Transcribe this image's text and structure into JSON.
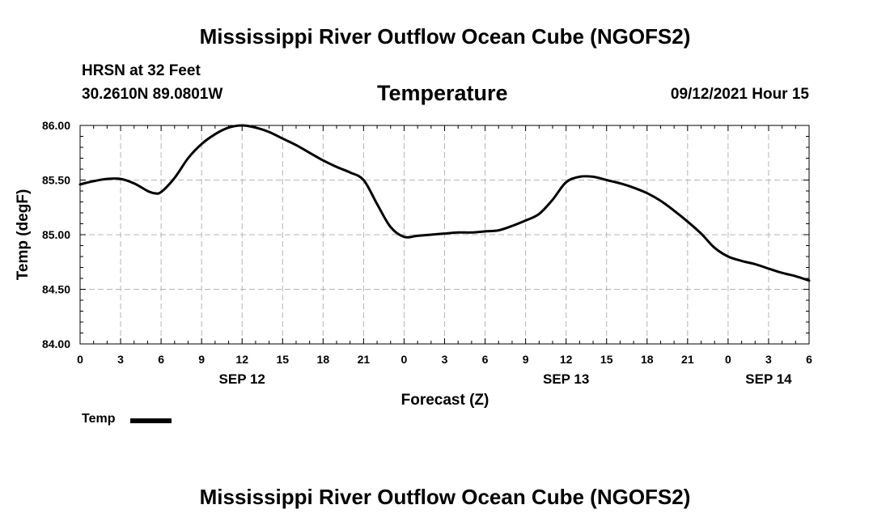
{
  "header": {
    "title": "Mississippi River Outflow Ocean Cube (NGOFS2)",
    "station": "HRSN at 32 Feet",
    "coords": "30.2610N  89.0801W",
    "datetime": "09/12/2021 Hour 15",
    "footer_title": "Mississippi River Outflow Ocean Cube (NGOFS2)"
  },
  "legend": {
    "label": "Temp"
  },
  "colors": {
    "line": "#000000",
    "grid": "#b4b4b4",
    "background": "#ffffff"
  },
  "chart_data": {
    "type": "line",
    "title": "Temperature",
    "xlabel": "Forecast (Z)",
    "ylabel": "Temp (degF)",
    "xlim": [
      0,
      54
    ],
    "ylim": [
      84.0,
      86.0
    ],
    "grid": true,
    "legend_position": "bottom-left",
    "x_ticks": [
      0,
      3,
      6,
      9,
      12,
      15,
      18,
      21,
      24,
      27,
      30,
      33,
      36,
      39,
      42,
      45,
      48,
      51,
      54
    ],
    "x_tick_labels": [
      "0",
      "3",
      "6",
      "9",
      "12",
      "15",
      "18",
      "21",
      "0",
      "3",
      "6",
      "9",
      "12",
      "15",
      "18",
      "21",
      "0",
      "3",
      "6"
    ],
    "y_ticks": [
      84.0,
      84.5,
      85.0,
      85.5,
      86.0
    ],
    "y_tick_labels": [
      "84.00",
      "84.50",
      "85.00",
      "85.50",
      "86.00"
    ],
    "date_labels": [
      {
        "x": 12,
        "label": "SEP 12"
      },
      {
        "x": 36,
        "label": "SEP 13"
      },
      {
        "x": 51,
        "label": "SEP 14"
      }
    ],
    "series": [
      {
        "name": "Temp",
        "x": [
          0,
          1,
          2,
          3,
          4,
          5,
          5.5,
          6,
          7,
          8,
          9,
          10,
          11,
          12,
          13,
          14,
          15,
          16,
          17,
          18,
          19,
          20,
          21,
          22,
          23,
          24,
          25,
          26,
          27,
          28,
          29,
          30,
          31,
          32,
          33,
          34,
          35,
          36,
          37,
          38,
          39,
          40,
          41,
          42,
          43,
          44,
          45,
          46,
          47,
          48,
          49,
          50,
          51,
          52,
          53,
          54
        ],
        "values": [
          85.46,
          85.49,
          85.51,
          85.51,
          85.47,
          85.4,
          85.38,
          85.39,
          85.52,
          85.7,
          85.83,
          85.92,
          85.98,
          86.0,
          85.98,
          85.94,
          85.88,
          85.82,
          85.75,
          85.68,
          85.62,
          85.57,
          85.5,
          85.28,
          85.07,
          84.98,
          84.99,
          85.0,
          85.01,
          85.02,
          85.02,
          85.03,
          85.04,
          85.08,
          85.13,
          85.19,
          85.32,
          85.48,
          85.53,
          85.53,
          85.5,
          85.47,
          85.43,
          85.38,
          85.31,
          85.22,
          85.12,
          85.01,
          84.88,
          84.8,
          84.76,
          84.73,
          84.69,
          84.65,
          84.62,
          84.58
        ]
      }
    ]
  }
}
